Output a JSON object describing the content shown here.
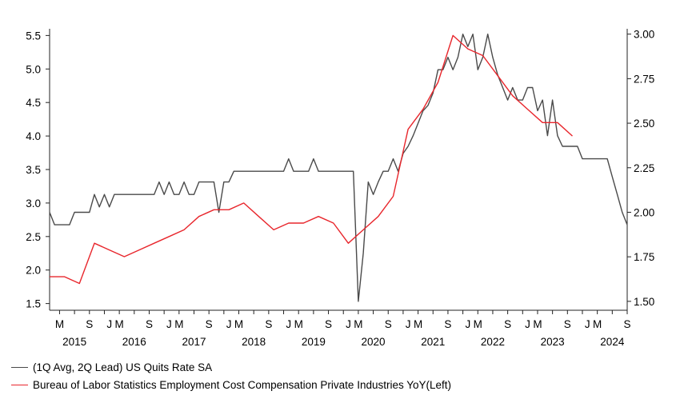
{
  "chart_data": {
    "type": "line",
    "title": "",
    "left_axis": {
      "ticks": [
        "1.5",
        "2.0",
        "2.5",
        "3.0",
        "3.5",
        "4.0",
        "4.5",
        "5.0",
        "5.5"
      ],
      "range": [
        1.4,
        5.6
      ]
    },
    "right_axis": {
      "ticks": [
        "1.50",
        "1.75",
        "2.00",
        "2.25",
        "2.50",
        "2.75",
        "3.00"
      ],
      "range": [
        1.45,
        3.03
      ]
    },
    "month_ticks": [
      "M",
      "S",
      "J",
      "M",
      "S",
      "J",
      "M",
      "S",
      "J",
      "M",
      "S",
      "J",
      "M",
      "S",
      "J",
      "M",
      "S",
      "J",
      "M",
      "S",
      "J",
      "M",
      "S",
      "J",
      "M",
      "S",
      "J",
      "M",
      "S"
    ],
    "year_labels": [
      "2015",
      "2016",
      "2017",
      "2018",
      "2019",
      "2020",
      "2021",
      "2022",
      "2023",
      "2024"
    ],
    "x_range": [
      "2015-01",
      "2024-09"
    ],
    "grid": false,
    "legend_position": "bottom-left",
    "series": [
      {
        "name": "(1Q Avg, 2Q Lead) US Quits Rate SA",
        "axis": "right",
        "color": "#4a4a4a",
        "x": [
          "2015-01",
          "2015-02",
          "2015-03",
          "2015-04",
          "2015-05",
          "2015-06",
          "2015-07",
          "2015-08",
          "2015-09",
          "2015-10",
          "2015-11",
          "2015-12",
          "2016-01",
          "2016-02",
          "2016-03",
          "2016-04",
          "2016-05",
          "2016-06",
          "2016-07",
          "2016-08",
          "2016-09",
          "2016-10",
          "2016-11",
          "2016-12",
          "2017-01",
          "2017-02",
          "2017-03",
          "2017-04",
          "2017-05",
          "2017-06",
          "2017-07",
          "2017-08",
          "2017-09",
          "2017-10",
          "2017-11",
          "2017-12",
          "2018-01",
          "2018-02",
          "2018-03",
          "2018-04",
          "2018-05",
          "2018-06",
          "2018-07",
          "2018-08",
          "2018-09",
          "2018-10",
          "2018-11",
          "2018-12",
          "2019-01",
          "2019-02",
          "2019-03",
          "2019-04",
          "2019-05",
          "2019-06",
          "2019-07",
          "2019-08",
          "2019-09",
          "2019-10",
          "2019-11",
          "2019-12",
          "2020-01",
          "2020-02",
          "2020-03",
          "2020-04",
          "2020-05",
          "2020-06",
          "2020-07",
          "2020-08",
          "2020-09",
          "2020-10",
          "2020-11",
          "2020-12",
          "2021-01",
          "2021-02",
          "2021-03",
          "2021-04",
          "2021-05",
          "2021-06",
          "2021-07",
          "2021-08",
          "2021-09",
          "2021-10",
          "2021-11",
          "2021-12",
          "2022-01",
          "2022-02",
          "2022-03",
          "2022-04",
          "2022-05",
          "2022-06",
          "2022-07",
          "2022-08",
          "2022-09",
          "2022-10",
          "2022-11",
          "2022-12",
          "2023-01",
          "2023-02",
          "2023-03",
          "2023-04",
          "2023-05",
          "2023-06",
          "2023-07",
          "2023-08",
          "2023-09",
          "2023-10",
          "2023-11",
          "2023-12",
          "2024-01",
          "2024-02",
          "2024-03",
          "2024-04",
          "2024-05",
          "2024-06",
          "2024-07",
          "2024-08",
          "2024-09"
        ],
        "y": [
          2.0,
          1.93,
          1.93,
          1.93,
          1.93,
          2.0,
          2.0,
          2.0,
          2.0,
          2.1,
          2.03,
          2.1,
          2.03,
          2.1,
          2.1,
          2.1,
          2.1,
          2.1,
          2.1,
          2.1,
          2.1,
          2.1,
          2.17,
          2.1,
          2.17,
          2.1,
          2.1,
          2.17,
          2.1,
          2.1,
          2.17,
          2.17,
          2.17,
          2.17,
          2.0,
          2.17,
          2.17,
          2.23,
          2.23,
          2.23,
          2.23,
          2.23,
          2.23,
          2.23,
          2.23,
          2.23,
          2.23,
          2.23,
          2.3,
          2.23,
          2.23,
          2.23,
          2.23,
          2.3,
          2.23,
          2.23,
          2.23,
          2.23,
          2.23,
          2.23,
          2.23,
          2.23,
          1.5,
          1.77,
          2.17,
          2.1,
          2.17,
          2.23,
          2.23,
          2.3,
          2.23,
          2.33,
          2.37,
          2.43,
          2.5,
          2.57,
          2.6,
          2.67,
          2.8,
          2.8,
          2.87,
          2.8,
          2.87,
          3.0,
          2.93,
          3.0,
          2.8,
          2.87,
          3.0,
          2.87,
          2.77,
          2.7,
          2.63,
          2.7,
          2.63,
          2.63,
          2.7,
          2.7,
          2.57,
          2.63,
          2.43,
          2.63,
          2.43,
          2.37,
          2.37,
          2.37,
          2.37,
          2.3,
          2.3,
          2.3,
          2.3,
          2.3,
          2.3,
          2.2,
          2.1,
          2.0,
          1.93
        ]
      },
      {
        "name": "Bureau of Labor Statistics Employment Cost Compensation Private Industries YoY(Left)",
        "axis": "left",
        "color": "#e8262c",
        "x": [
          "2015-01",
          "2015-04",
          "2015-07",
          "2015-10",
          "2016-01",
          "2016-04",
          "2016-07",
          "2016-10",
          "2017-01",
          "2017-04",
          "2017-07",
          "2017-10",
          "2018-01",
          "2018-04",
          "2018-07",
          "2018-10",
          "2019-01",
          "2019-04",
          "2019-07",
          "2019-10",
          "2020-01",
          "2020-04",
          "2020-07",
          "2020-10",
          "2021-01",
          "2021-04",
          "2021-07",
          "2021-10",
          "2022-01",
          "2022-04",
          "2022-07",
          "2022-10",
          "2023-01",
          "2023-04",
          "2023-07",
          "2023-10"
        ],
        "y": [
          1.9,
          1.9,
          1.8,
          2.4,
          2.3,
          2.2,
          2.3,
          2.4,
          2.5,
          2.6,
          2.8,
          2.9,
          2.9,
          3.0,
          2.8,
          2.6,
          2.7,
          2.7,
          2.8,
          2.7,
          2.4,
          2.6,
          2.8,
          3.1,
          4.1,
          4.4,
          4.8,
          5.5,
          5.3,
          5.2,
          4.9,
          4.6,
          4.4,
          4.2,
          4.2,
          4.0
        ]
      }
    ]
  }
}
